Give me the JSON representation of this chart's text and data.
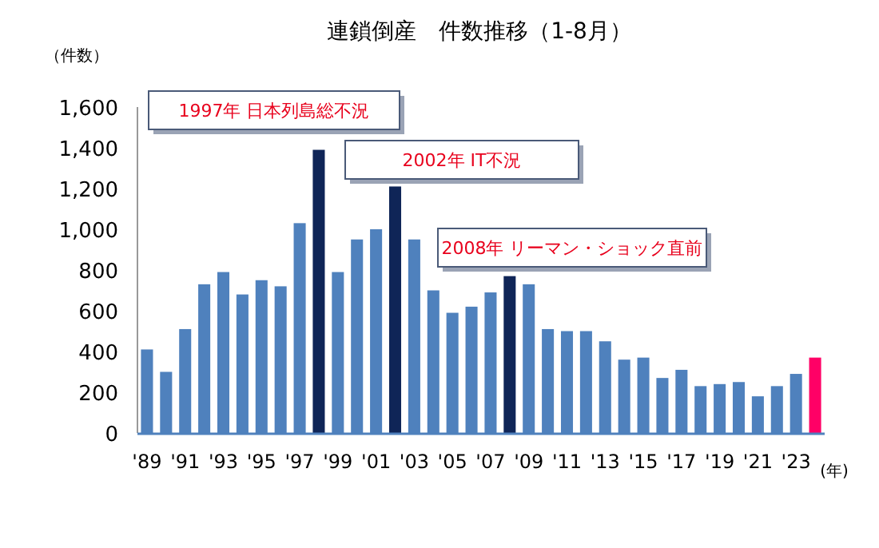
{
  "chart_data": {
    "type": "bar",
    "title": "連鎖倒産　件数推移（1-8月）",
    "ylabel": "（件数）",
    "xlabel": "(年)",
    "categories": [
      "'89",
      null,
      "'91",
      null,
      "'93",
      null,
      "'95",
      null,
      "'97",
      null,
      "'99",
      null,
      "'01",
      null,
      "'03",
      null,
      "'05",
      null,
      "'07",
      null,
      "'09",
      null,
      "'11",
      null,
      "'13",
      null,
      "'15",
      null,
      "'17",
      null,
      "'19",
      null,
      "'21",
      null,
      "'23",
      null
    ],
    "values": [
      410,
      300,
      510,
      730,
      790,
      680,
      750,
      720,
      1030,
      1390,
      790,
      950,
      1000,
      1210,
      950,
      700,
      590,
      620,
      690,
      770,
      730,
      510,
      500,
      500,
      450,
      360,
      370,
      270,
      310,
      230,
      240,
      250,
      180,
      230,
      290,
      370
    ],
    "colors": [
      "#4f81bd",
      "#4f81bd",
      "#4f81bd",
      "#4f81bd",
      "#4f81bd",
      "#4f81bd",
      "#4f81bd",
      "#4f81bd",
      "#4f81bd",
      "#0f2557",
      "#4f81bd",
      "#4f81bd",
      "#4f81bd",
      "#0f2557",
      "#4f81bd",
      "#4f81bd",
      "#4f81bd",
      "#4f81bd",
      "#4f81bd",
      "#0f2557",
      "#4f81bd",
      "#4f81bd",
      "#4f81bd",
      "#4f81bd",
      "#4f81bd",
      "#4f81bd",
      "#4f81bd",
      "#4f81bd",
      "#4f81bd",
      "#4f81bd",
      "#4f81bd",
      "#4f81bd",
      "#4f81bd",
      "#4f81bd",
      "#4f81bd",
      "#ff0066"
    ],
    "ylim": [
      0,
      1600
    ],
    "yticks": [
      {
        "value": 0,
        "label": "0"
      },
      {
        "value": 200,
        "label": "200"
      },
      {
        "value": 400,
        "label": "400"
      },
      {
        "value": 600,
        "label": "600"
      },
      {
        "value": 800,
        "label": "800"
      },
      {
        "value": 1000,
        "label": "1,000"
      },
      {
        "value": 1200,
        "label": "1,200"
      },
      {
        "value": 1400,
        "label": "1,400"
      },
      {
        "value": 1600,
        "label": "1,600"
      }
    ],
    "annotations": [
      "1997年 日本列島総不況",
      "2002年 IT不況",
      "2008年 リーマン・ショック直前"
    ]
  }
}
